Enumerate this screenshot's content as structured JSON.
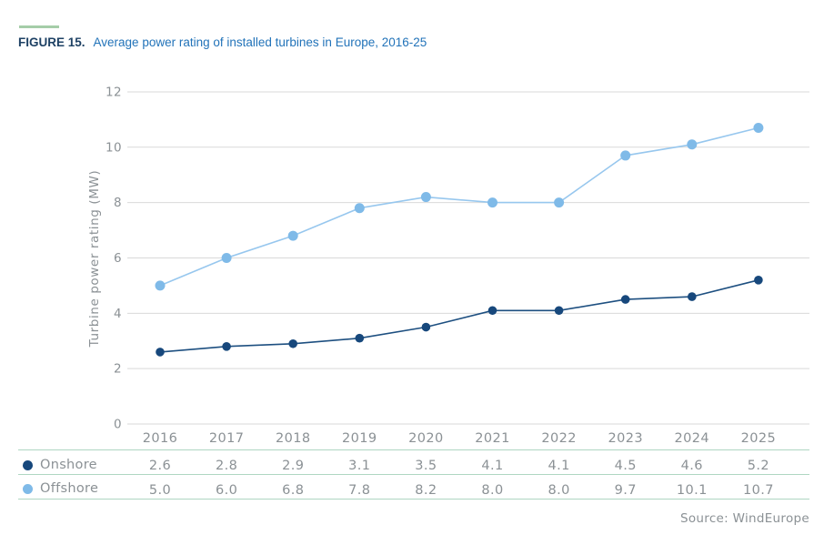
{
  "header": {
    "figure_label": "FIGURE 15.",
    "title": "Average power rating of installed turbines in Europe, 2016-25"
  },
  "chart_data": {
    "type": "line",
    "categories": [
      "2016",
      "2017",
      "2018",
      "2019",
      "2020",
      "2021",
      "2022",
      "2023",
      "2024",
      "2025"
    ],
    "series": [
      {
        "name": "Onshore",
        "values": [
          2.6,
          2.8,
          2.9,
          3.1,
          3.5,
          4.1,
          4.1,
          4.5,
          4.6,
          5.2
        ]
      },
      {
        "name": "Offshore",
        "values": [
          5.0,
          6.0,
          6.8,
          7.8,
          8.2,
          8.0,
          8.0,
          9.7,
          10.1,
          10.7
        ]
      }
    ],
    "title": "Average power rating of installed turbines in Europe, 2016-25",
    "xlabel": "",
    "ylabel": "Turbine power rating (MW)",
    "ylim": [
      0,
      12
    ],
    "ytick_step": 2,
    "grid": "horizontal",
    "legend_position": "table-left-of-data-rows"
  },
  "legend": {
    "onshore_label": "Onshore",
    "offshore_label": "Offshore"
  },
  "colors": {
    "accent_green": "#A5CDA8",
    "table_rule_green": "#AFD6C2",
    "gridline_gray": "#D9D9D9",
    "text_gray": "#8B9195",
    "title_navy": "#1E4164",
    "title_blue": "#2273B9",
    "onshore_marker": "#17487C",
    "onshore_line": "#1D4F80",
    "offshore_marker": "#7FBAE8",
    "offshore_line": "#97C7EE"
  },
  "footer": {
    "source": "Source: WindEurope"
  }
}
